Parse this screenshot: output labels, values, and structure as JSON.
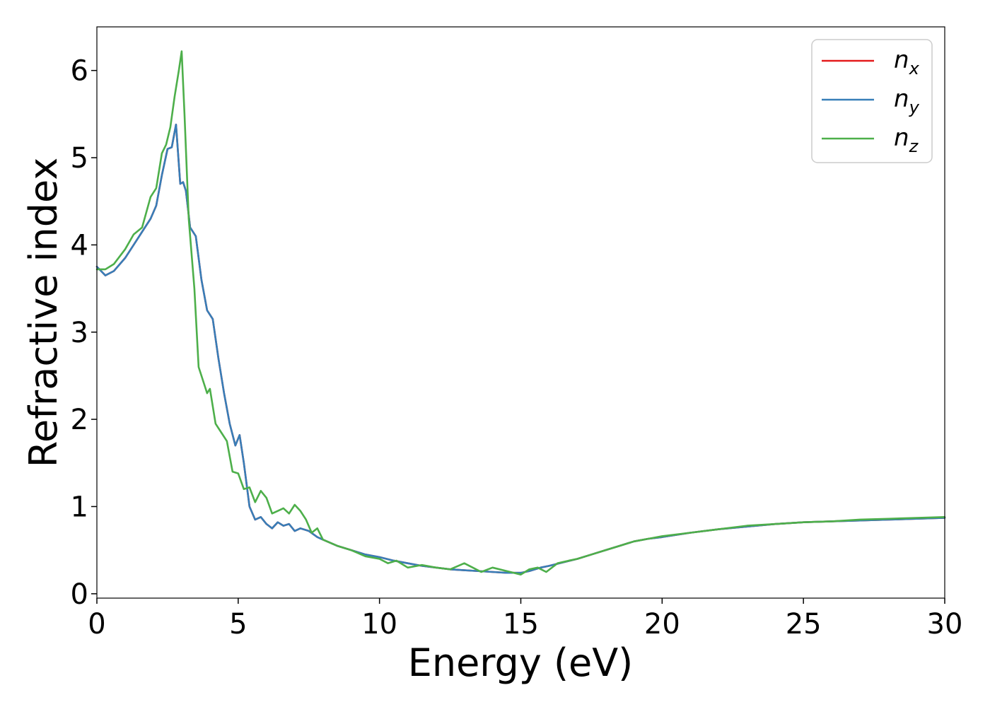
{
  "chart_data": {
    "type": "line",
    "title": "",
    "xlabel": "Energy (eV)",
    "ylabel": "Refractive index",
    "xlim": [
      0,
      30
    ],
    "ylim": [
      -0.05,
      6.5
    ],
    "xticks": [
      0,
      5,
      10,
      15,
      20,
      25,
      30
    ],
    "yticks": [
      0,
      1,
      2,
      3,
      4,
      5,
      6
    ],
    "grid": false,
    "legend_position": "top-right",
    "series": [
      {
        "name": "n",
        "subscript": "x",
        "color": "#e41a1c",
        "x": [
          0,
          0.3,
          0.6,
          1.0,
          1.3,
          1.6,
          1.9,
          2.1,
          2.3,
          2.5,
          2.65,
          2.8,
          2.95,
          3.05,
          3.15,
          3.3,
          3.5,
          3.7,
          3.9,
          4.1,
          4.3,
          4.5,
          4.7,
          4.9,
          5.05,
          5.2,
          5.4,
          5.6,
          5.8,
          6.0,
          6.2,
          6.4,
          6.6,
          6.8,
          7.0,
          7.2,
          7.5,
          7.8,
          8.0,
          8.5,
          9.0,
          9.5,
          10.0,
          10.5,
          11.0,
          11.5,
          12.0,
          12.5,
          13.0,
          13.5,
          14.0,
          14.5,
          15.0,
          15.3,
          15.7,
          16.0,
          16.5,
          17.0,
          17.5,
          18.0,
          18.5,
          19.0,
          19.5,
          20.0,
          21.0,
          22.0,
          23.0,
          24.0,
          25.0,
          26.0,
          27.0,
          28.0,
          29.0,
          30.0
        ],
        "y": [
          3.75,
          3.65,
          3.7,
          3.85,
          4.0,
          4.15,
          4.3,
          4.45,
          4.8,
          5.1,
          5.12,
          5.38,
          4.7,
          4.72,
          4.62,
          4.2,
          4.1,
          3.6,
          3.25,
          3.15,
          2.7,
          2.3,
          1.95,
          1.7,
          1.82,
          1.5,
          1.0,
          0.85,
          0.88,
          0.8,
          0.75,
          0.82,
          0.78,
          0.8,
          0.72,
          0.75,
          0.72,
          0.65,
          0.62,
          0.55,
          0.5,
          0.45,
          0.42,
          0.38,
          0.35,
          0.32,
          0.3,
          0.28,
          0.27,
          0.26,
          0.25,
          0.24,
          0.24,
          0.26,
          0.3,
          0.32,
          0.36,
          0.4,
          0.45,
          0.5,
          0.55,
          0.6,
          0.63,
          0.65,
          0.7,
          0.74,
          0.77,
          0.8,
          0.82,
          0.83,
          0.84,
          0.85,
          0.86,
          0.87
        ]
      },
      {
        "name": "n",
        "subscript": "y",
        "color": "#377eb8",
        "x": [
          0,
          0.3,
          0.6,
          1.0,
          1.3,
          1.6,
          1.9,
          2.1,
          2.3,
          2.5,
          2.65,
          2.8,
          2.95,
          3.05,
          3.15,
          3.3,
          3.5,
          3.7,
          3.9,
          4.1,
          4.3,
          4.5,
          4.7,
          4.9,
          5.05,
          5.2,
          5.4,
          5.6,
          5.8,
          6.0,
          6.2,
          6.4,
          6.6,
          6.8,
          7.0,
          7.2,
          7.5,
          7.8,
          8.0,
          8.5,
          9.0,
          9.5,
          10.0,
          10.5,
          11.0,
          11.5,
          12.0,
          12.5,
          13.0,
          13.5,
          14.0,
          14.5,
          15.0,
          15.3,
          15.7,
          16.0,
          16.5,
          17.0,
          17.5,
          18.0,
          18.5,
          19.0,
          19.5,
          20.0,
          21.0,
          22.0,
          23.0,
          24.0,
          25.0,
          26.0,
          27.0,
          28.0,
          29.0,
          30.0
        ],
        "y": [
          3.75,
          3.65,
          3.7,
          3.85,
          4.0,
          4.15,
          4.3,
          4.45,
          4.8,
          5.1,
          5.12,
          5.38,
          4.7,
          4.72,
          4.62,
          4.2,
          4.1,
          3.6,
          3.25,
          3.15,
          2.7,
          2.3,
          1.95,
          1.7,
          1.82,
          1.5,
          1.0,
          0.85,
          0.88,
          0.8,
          0.75,
          0.82,
          0.78,
          0.8,
          0.72,
          0.75,
          0.72,
          0.65,
          0.62,
          0.55,
          0.5,
          0.45,
          0.42,
          0.38,
          0.35,
          0.32,
          0.3,
          0.28,
          0.27,
          0.26,
          0.25,
          0.24,
          0.24,
          0.26,
          0.3,
          0.32,
          0.36,
          0.4,
          0.45,
          0.5,
          0.55,
          0.6,
          0.63,
          0.65,
          0.7,
          0.74,
          0.77,
          0.8,
          0.82,
          0.83,
          0.84,
          0.85,
          0.86,
          0.87
        ]
      },
      {
        "name": "n",
        "subscript": "z",
        "color": "#4daf4a",
        "x": [
          0,
          0.3,
          0.6,
          1.0,
          1.3,
          1.6,
          1.9,
          2.1,
          2.3,
          2.45,
          2.6,
          2.75,
          2.9,
          3.0,
          3.1,
          3.25,
          3.45,
          3.6,
          3.75,
          3.9,
          4.0,
          4.2,
          4.4,
          4.6,
          4.8,
          5.0,
          5.2,
          5.4,
          5.6,
          5.8,
          6.0,
          6.2,
          6.4,
          6.6,
          6.8,
          7.0,
          7.2,
          7.4,
          7.6,
          7.8,
          8.0,
          8.5,
          9.0,
          9.5,
          10.0,
          10.3,
          10.6,
          11.0,
          11.5,
          12.0,
          12.5,
          13.0,
          13.3,
          13.6,
          14.0,
          14.5,
          15.0,
          15.3,
          15.6,
          15.9,
          16.3,
          16.7,
          17.0,
          17.5,
          18.0,
          18.5,
          19.0,
          19.5,
          20.0,
          21.0,
          22.0,
          23.0,
          24.0,
          25.0,
          26.0,
          27.0,
          28.0,
          29.0,
          30.0
        ],
        "y": [
          3.72,
          3.72,
          3.78,
          3.95,
          4.12,
          4.2,
          4.55,
          4.65,
          5.05,
          5.15,
          5.35,
          5.7,
          6.0,
          6.22,
          5.5,
          4.3,
          3.5,
          2.6,
          2.45,
          2.3,
          2.35,
          1.95,
          1.85,
          1.75,
          1.4,
          1.38,
          1.2,
          1.22,
          1.05,
          1.18,
          1.1,
          0.92,
          0.95,
          0.98,
          0.92,
          1.02,
          0.95,
          0.85,
          0.7,
          0.75,
          0.62,
          0.55,
          0.5,
          0.43,
          0.4,
          0.35,
          0.38,
          0.3,
          0.33,
          0.3,
          0.28,
          0.35,
          0.3,
          0.25,
          0.3,
          0.26,
          0.22,
          0.28,
          0.3,
          0.25,
          0.35,
          0.38,
          0.4,
          0.45,
          0.5,
          0.55,
          0.6,
          0.63,
          0.66,
          0.7,
          0.74,
          0.78,
          0.8,
          0.82,
          0.83,
          0.85,
          0.86,
          0.87,
          0.88
        ]
      }
    ]
  }
}
